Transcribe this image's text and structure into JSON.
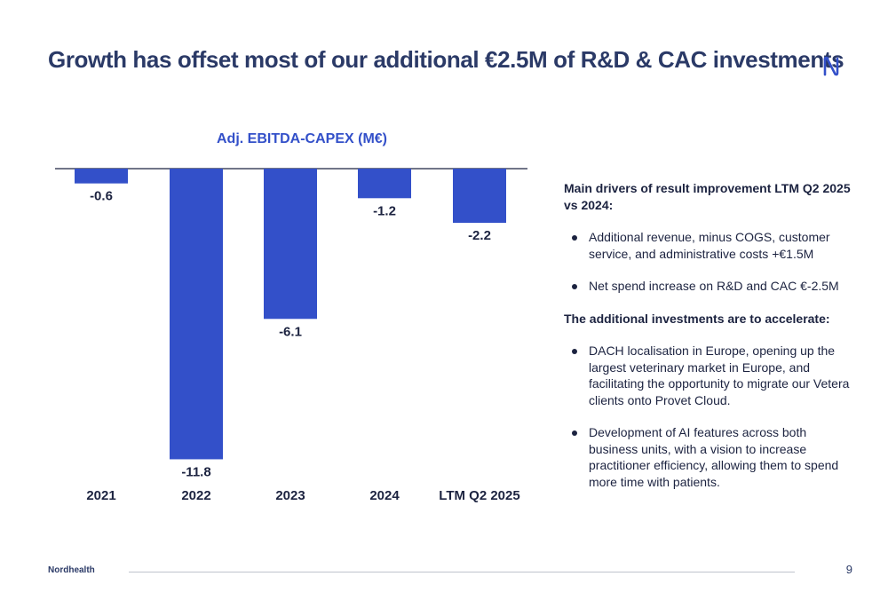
{
  "page": {
    "title": "Growth has offset most of our additional €2.5M of R&D & CAC investments",
    "logo_icon": "nordhealth-logo-icon",
    "brand_color": "#3350c9"
  },
  "chart_data": {
    "type": "bar",
    "title": "Adj. EBITDA-CAPEX (M€)",
    "categories": [
      "2021",
      "2022",
      "2023",
      "2024",
      "LTM Q2 2025"
    ],
    "values": [
      -0.6,
      -11.8,
      -6.1,
      -1.2,
      -2.2
    ],
    "data_labels": [
      "-0.6",
      "-11.8",
      "-6.1",
      "-1.2",
      "-2.2"
    ],
    "ylim": [
      -12,
      0
    ],
    "grid": false,
    "bar_color": "#3350c9",
    "xlabel": "",
    "ylabel": ""
  },
  "panel": {
    "section1_heading": "Main drivers of result improvement LTM Q2 2025 vs 2024:",
    "section1_items": [
      "Additional revenue, minus COGS, customer service, and administrative costs +€1.5M",
      "Net spend increase on R&D and CAC €-2.5M"
    ],
    "section2_heading": "The additional investments are to accelerate:",
    "section2_items": [
      "DACH localisation in Europe, opening up the largest veterinary market in Europe, and facilitating the opportunity to migrate our Vetera clients onto Provet Cloud.",
      "Development of AI features across both business units, with a vision to increase practitioner efficiency, allowing them to spend more time with patients."
    ]
  },
  "footer": {
    "brand": "Nordhealth",
    "page_number": "9"
  }
}
